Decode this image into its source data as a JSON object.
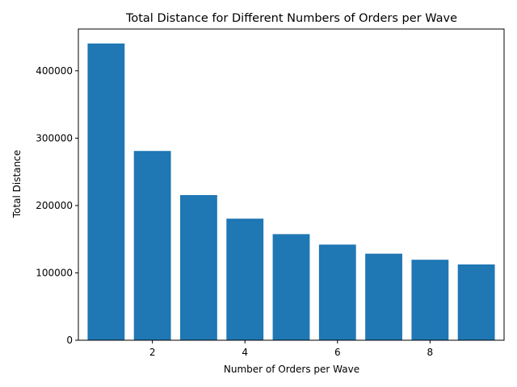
{
  "chart_data": {
    "type": "bar",
    "title": "Total Distance for Different Numbers of Orders per Wave",
    "xlabel": "Number of Orders per Wave",
    "ylabel": "Total Distance",
    "x": [
      1,
      2,
      3,
      4,
      5,
      6,
      7,
      8,
      9
    ],
    "values": [
      440500,
      281000,
      215500,
      180500,
      157500,
      142000,
      128500,
      119500,
      112500
    ],
    "bar_color": "#1f77b4",
    "xlim": [
      0.4,
      9.6
    ],
    "ylim": [
      0,
      462000
    ],
    "xticks": [
      2,
      4,
      6,
      8
    ],
    "xtick_labels": [
      "2",
      "4",
      "6",
      "8"
    ],
    "yticks": [
      0,
      100000,
      200000,
      300000,
      400000
    ],
    "ytick_labels": [
      "0",
      "100000",
      "200000",
      "300000",
      "400000"
    ],
    "grid": false,
    "legend": "none"
  }
}
